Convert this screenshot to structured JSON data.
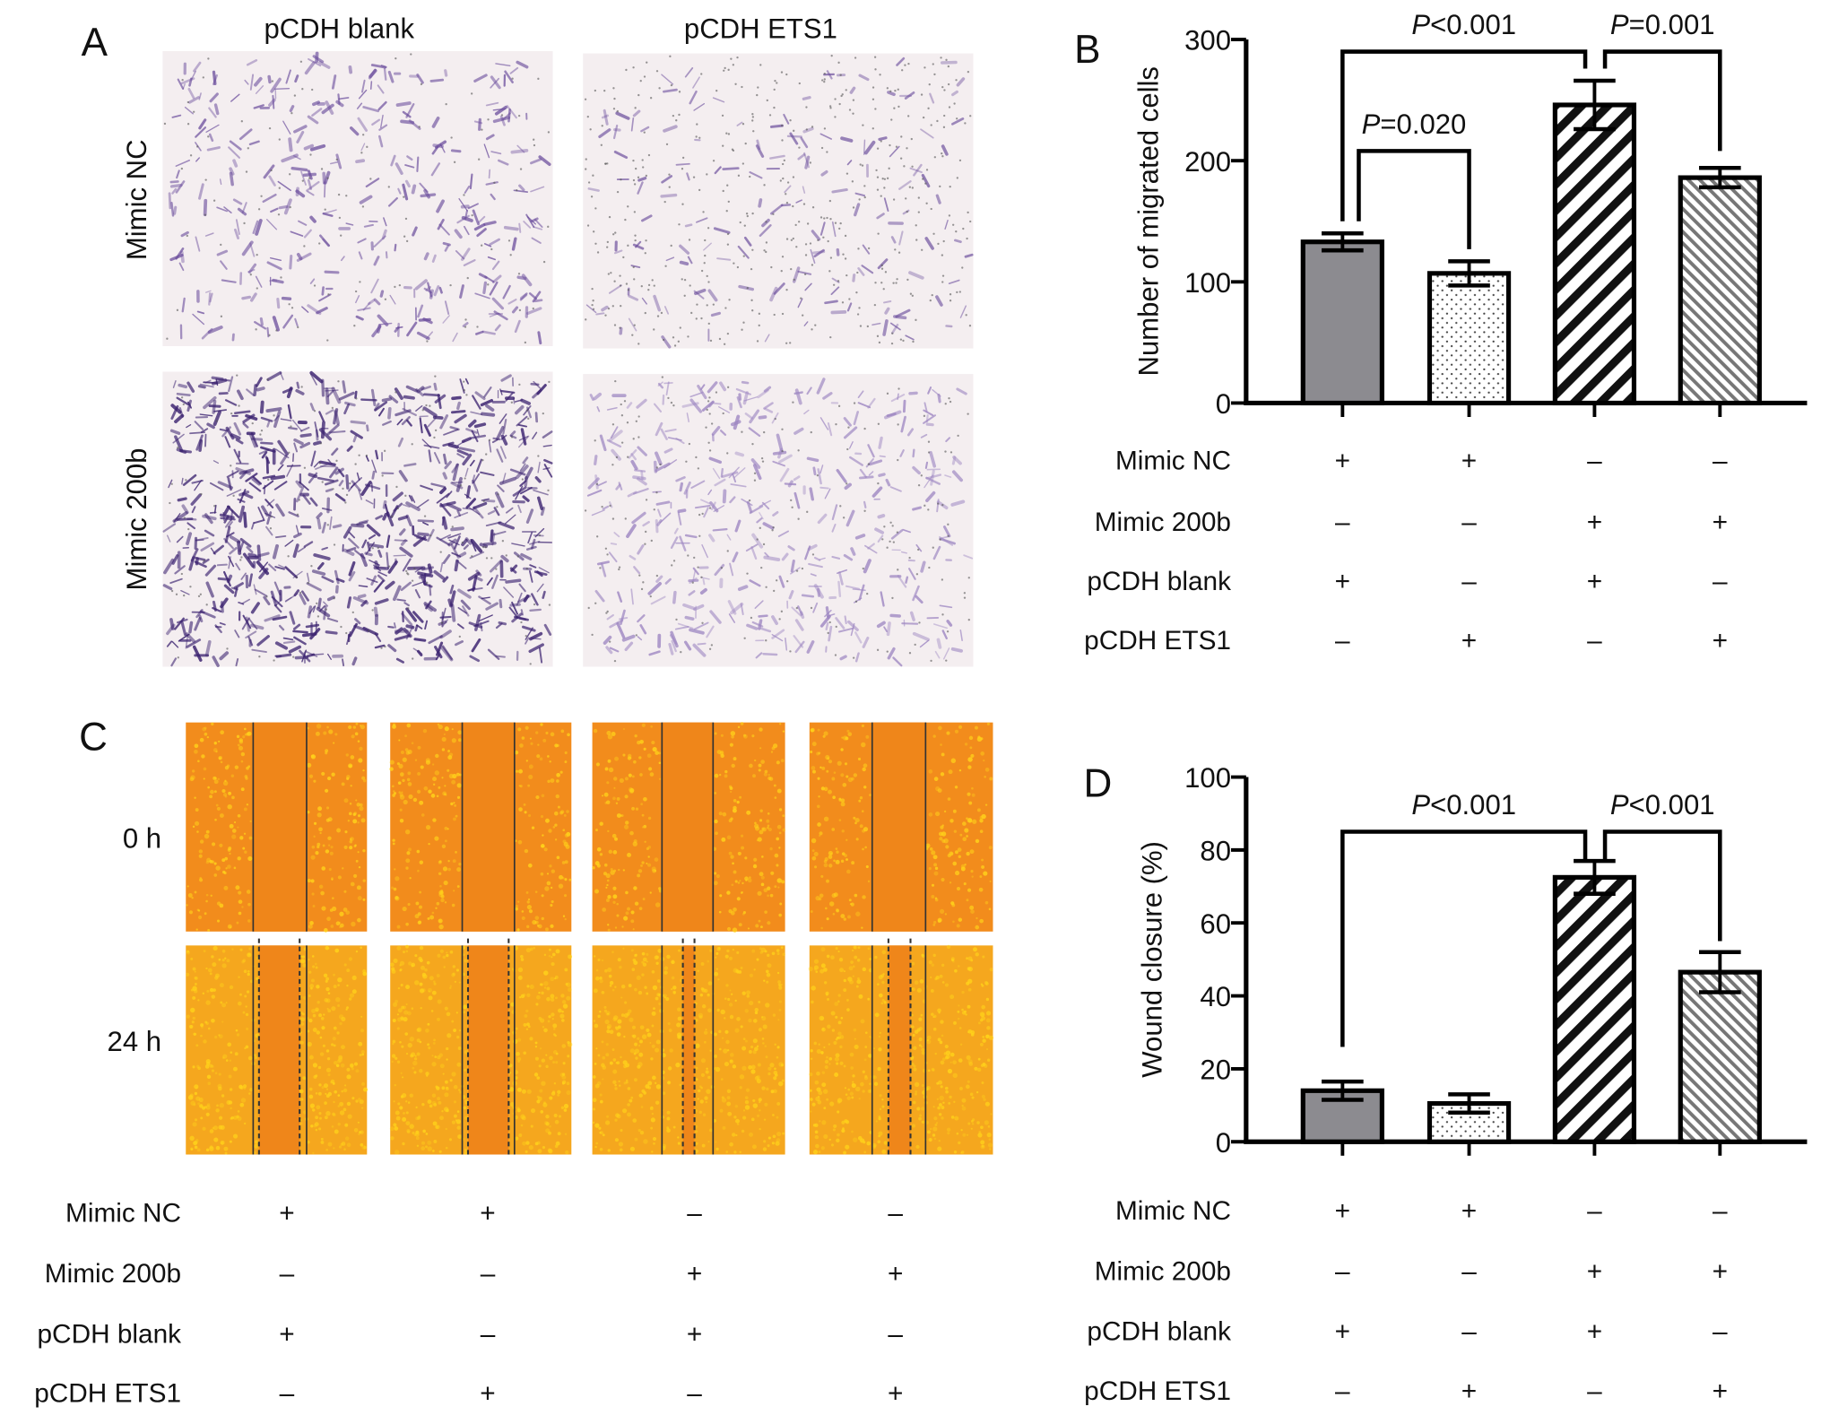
{
  "panel_letters": {
    "a": "A",
    "b": "B",
    "c": "C",
    "d": "D"
  },
  "panel_a": {
    "columns": [
      "pCDH blank",
      "pCDH ETS1"
    ],
    "rows": [
      "Mimic NC",
      "Mimic 200b"
    ],
    "colors": {
      "stain_dark": "#3b2270",
      "stain_mid": "#6a4c9c",
      "stain_light": "#9d86c2",
      "background": "#f4eef0"
    }
  },
  "panel_c": {
    "rows": [
      "0 h",
      "24 h"
    ],
    "colors": {
      "orange": "#f28c1c",
      "gap": "#ef861a",
      "speckle": "#ffd21a"
    }
  },
  "conditions": {
    "labels": [
      "Mimic NC",
      "Mimic 200b",
      "pCDH blank",
      "pCDH ETS1"
    ],
    "signs": [
      [
        "+",
        "+",
        "–",
        "–"
      ],
      [
        "–",
        "–",
        "+",
        "+"
      ],
      [
        "+",
        "–",
        "+",
        "–"
      ],
      [
        "–",
        "+",
        "–",
        "+"
      ]
    ]
  },
  "chart_data": [
    {
      "type": "bar",
      "panel": "B",
      "ylabel": "Number of migrated cells",
      "ylim": [
        0,
        300
      ],
      "yticks": [
        "0",
        "100",
        "200",
        "300"
      ],
      "categories": [
        "Mimic NC + pCDH blank",
        "Mimic NC + pCDH ETS1",
        "Mimic 200b + pCDH blank",
        "Mimic 200b + pCDH ETS1"
      ],
      "values": [
        133,
        107,
        246,
        186
      ],
      "errors": [
        7,
        10,
        20,
        8
      ],
      "fills": [
        "solid-gray",
        "dots",
        "bold-hatch",
        "fine-hatch"
      ],
      "comparisons": [
        {
          "pair": [
            0,
            2
          ],
          "label_prefix": "P",
          "label_rest": "<0.001",
          "level": 290,
          "left_end": 150,
          "right_end": 276
        },
        {
          "pair": [
            2,
            3
          ],
          "label_prefix": "P",
          "label_rest": "=0.001",
          "level": 290,
          "left_end": 276,
          "right_end": 208
        },
        {
          "pair": [
            0,
            1
          ],
          "label_prefix": "P",
          "label_rest": "=0.020",
          "level": 208,
          "left_end": 150,
          "right_end": 127
        }
      ]
    },
    {
      "type": "bar",
      "panel": "D",
      "ylabel": "Wound closure (%)",
      "ylim": [
        0,
        100
      ],
      "yticks": [
        "0",
        "20",
        "40",
        "60",
        "80",
        "100"
      ],
      "categories": [
        "Mimic NC + pCDH blank",
        "Mimic NC + pCDH ETS1",
        "Mimic 200b + pCDH blank",
        "Mimic 200b + pCDH ETS1"
      ],
      "values": [
        14,
        10.5,
        72.5,
        46.5
      ],
      "errors": [
        2.5,
        2.5,
        4.5,
        5.5
      ],
      "fills": [
        "solid-gray",
        "dots",
        "bold-hatch",
        "fine-hatch"
      ],
      "comparisons": [
        {
          "pair": [
            0,
            2
          ],
          "label_prefix": "P",
          "label_rest": "<0.001",
          "level": 85,
          "left_end": 26,
          "right_end": 77
        },
        {
          "pair": [
            2,
            3
          ],
          "label_prefix": "P",
          "label_rest": "<0.001",
          "level": 85,
          "left_end": 77,
          "right_end": 55
        }
      ]
    }
  ]
}
